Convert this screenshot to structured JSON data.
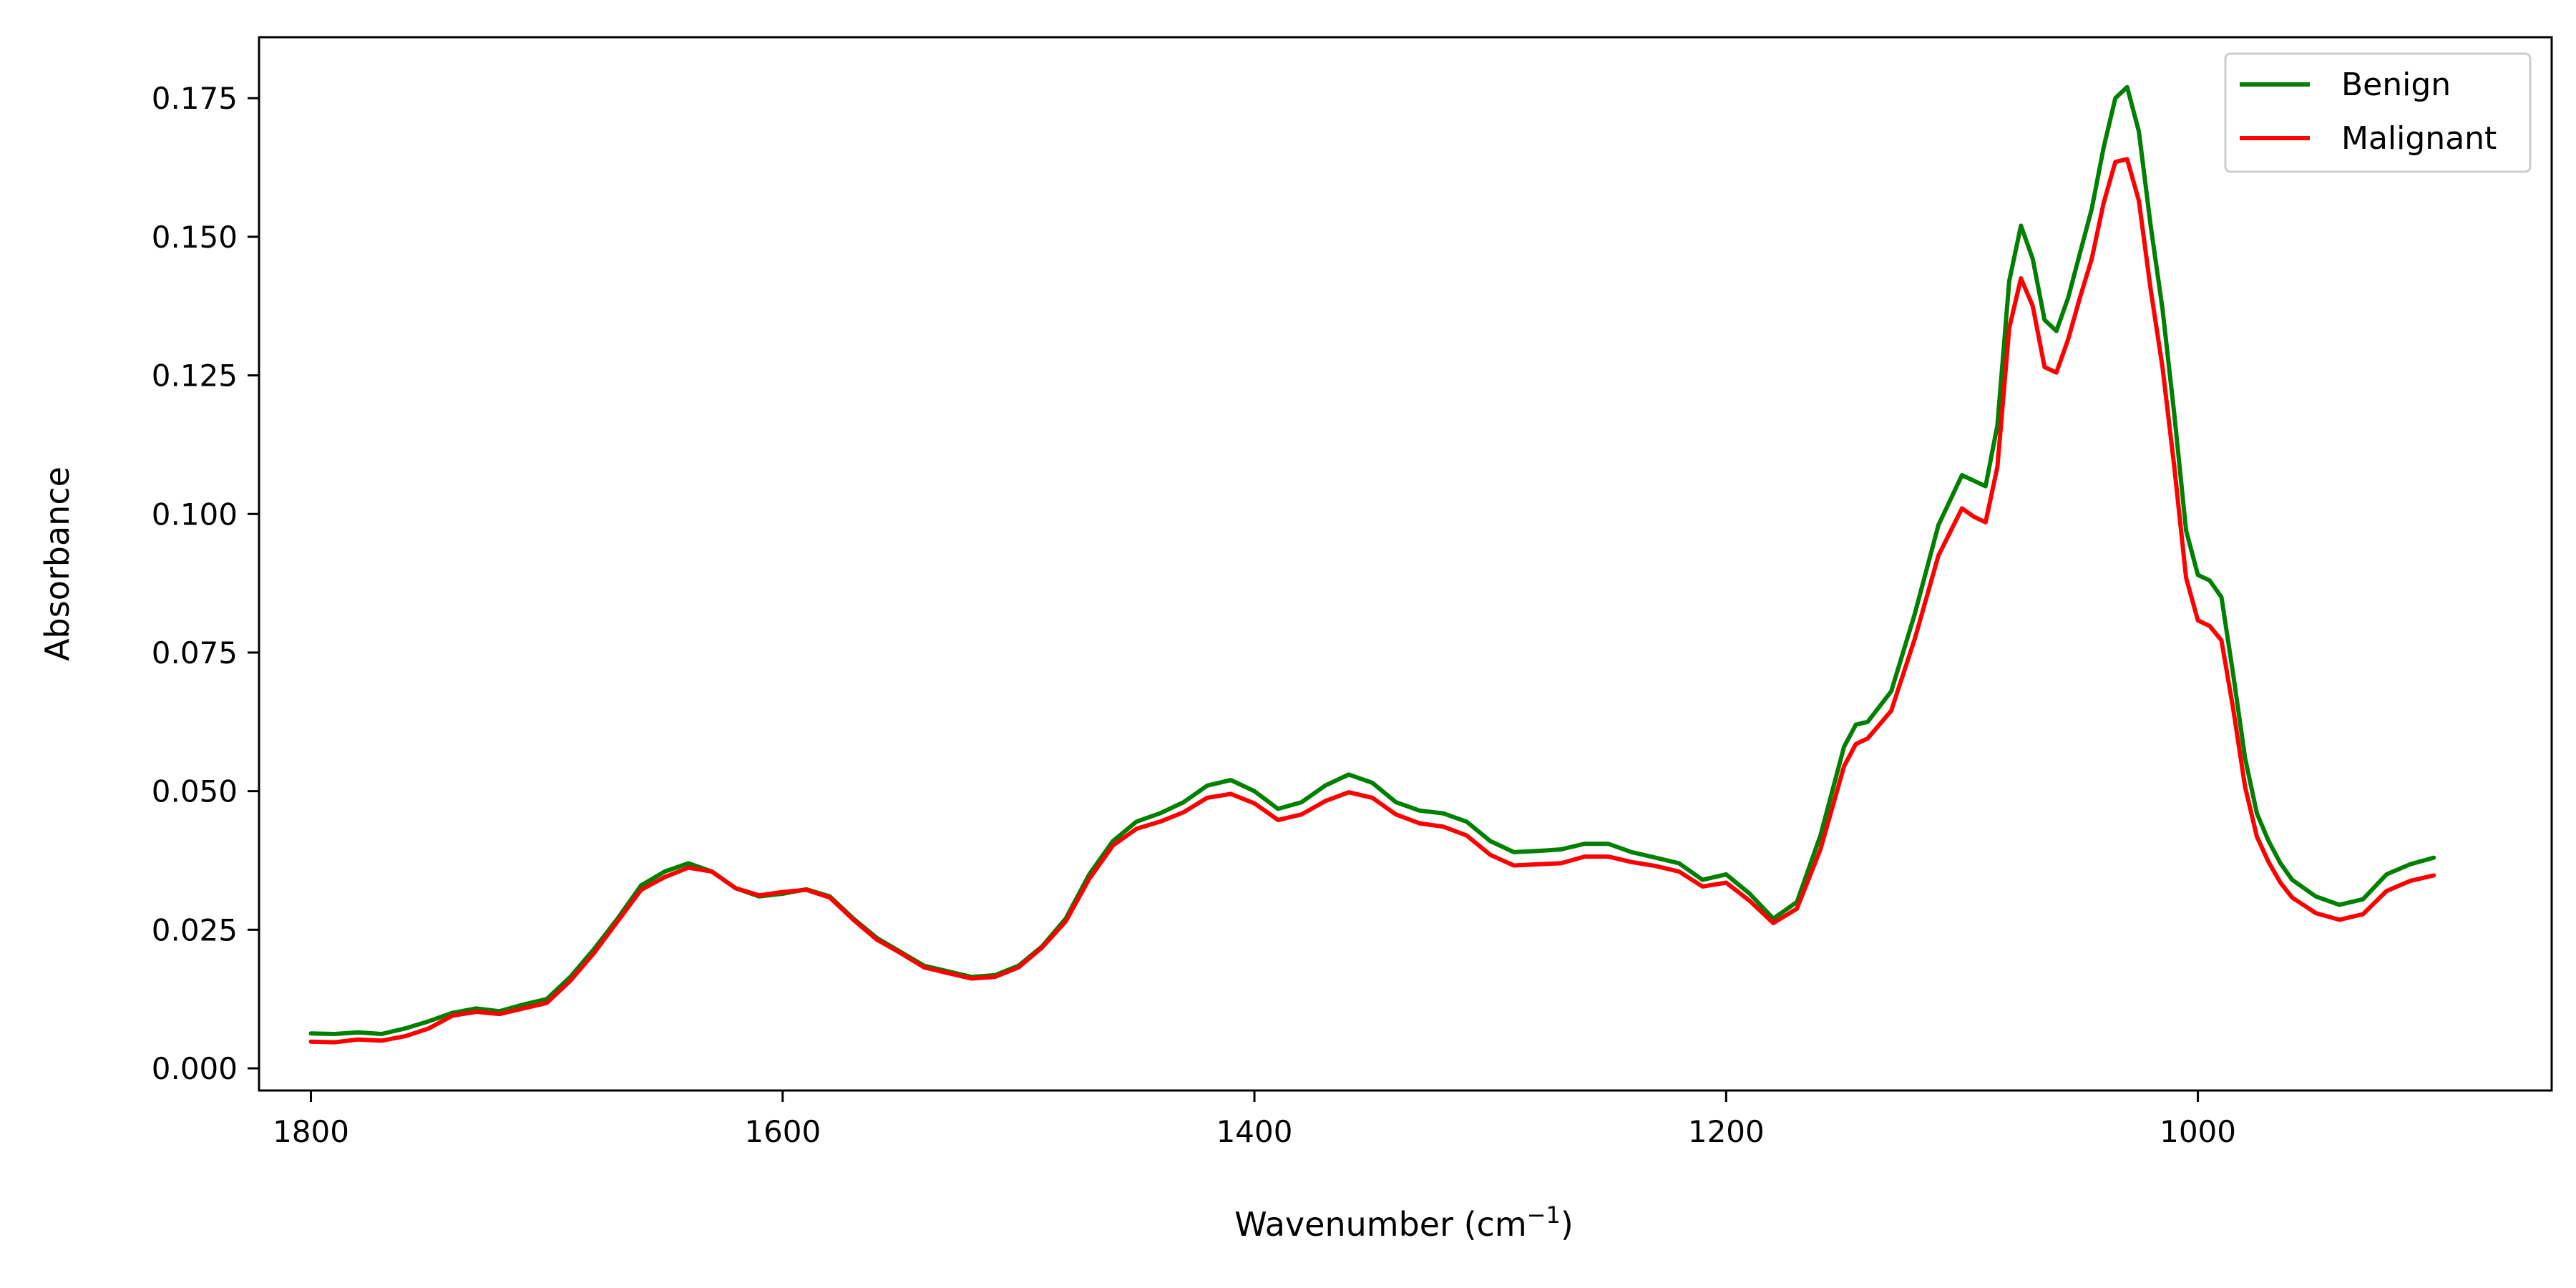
{
  "chart_data": {
    "type": "line",
    "title": "",
    "xlabel": "Wavenumber (cm",
    "xlabel_sup": "−1",
    "xlabel_close": ")",
    "ylabel": "Absorbance",
    "xlim": [
      1822,
      850
    ],
    "ylim": [
      -0.004,
      0.186
    ],
    "x_reversed": true,
    "x_ticks": [
      1800,
      1600,
      1400,
      1200,
      1000
    ],
    "x_tick_labels": [
      "1800",
      "1600",
      "1400",
      "1200",
      "1000"
    ],
    "y_ticks": [
      0.0,
      0.025,
      0.05,
      0.075,
      0.1,
      0.125,
      0.15,
      0.175
    ],
    "y_tick_labels": [
      "0.000",
      "0.025",
      "0.050",
      "0.075",
      "0.100",
      "0.125",
      "0.150",
      "0.175"
    ],
    "grid": false,
    "legend_position": "top-right",
    "series": [
      {
        "name": "Benign",
        "color": "#008000",
        "points": [
          [
            1800,
            0.0063
          ],
          [
            1790,
            0.0062
          ],
          [
            1780,
            0.0065
          ],
          [
            1770,
            0.0062
          ],
          [
            1760,
            0.0072
          ],
          [
            1750,
            0.0085
          ],
          [
            1740,
            0.01
          ],
          [
            1730,
            0.0108
          ],
          [
            1720,
            0.0103
          ],
          [
            1710,
            0.0115
          ],
          [
            1700,
            0.0125
          ],
          [
            1690,
            0.0165
          ],
          [
            1680,
            0.0215
          ],
          [
            1670,
            0.027
          ],
          [
            1660,
            0.033
          ],
          [
            1650,
            0.0355
          ],
          [
            1640,
            0.037
          ],
          [
            1630,
            0.0355
          ],
          [
            1620,
            0.0325
          ],
          [
            1610,
            0.031
          ],
          [
            1600,
            0.0315
          ],
          [
            1590,
            0.0323
          ],
          [
            1580,
            0.031
          ],
          [
            1570,
            0.027
          ],
          [
            1560,
            0.0235
          ],
          [
            1550,
            0.021
          ],
          [
            1540,
            0.0185
          ],
          [
            1530,
            0.0175
          ],
          [
            1520,
            0.0165
          ],
          [
            1510,
            0.0168
          ],
          [
            1500,
            0.0185
          ],
          [
            1490,
            0.022
          ],
          [
            1480,
            0.027
          ],
          [
            1470,
            0.035
          ],
          [
            1460,
            0.041
          ],
          [
            1450,
            0.0445
          ],
          [
            1440,
            0.046
          ],
          [
            1430,
            0.048
          ],
          [
            1420,
            0.051
          ],
          [
            1410,
            0.052
          ],
          [
            1400,
            0.05
          ],
          [
            1390,
            0.0468
          ],
          [
            1380,
            0.048
          ],
          [
            1370,
            0.051
          ],
          [
            1360,
            0.053
          ],
          [
            1350,
            0.0515
          ],
          [
            1340,
            0.048
          ],
          [
            1330,
            0.0465
          ],
          [
            1320,
            0.046
          ],
          [
            1310,
            0.0445
          ],
          [
            1300,
            0.041
          ],
          [
            1290,
            0.039
          ],
          [
            1280,
            0.0392
          ],
          [
            1270,
            0.0395
          ],
          [
            1260,
            0.0405
          ],
          [
            1250,
            0.0405
          ],
          [
            1240,
            0.039
          ],
          [
            1230,
            0.038
          ],
          [
            1220,
            0.037
          ],
          [
            1210,
            0.034
          ],
          [
            1200,
            0.035
          ],
          [
            1190,
            0.0315
          ],
          [
            1180,
            0.027
          ],
          [
            1170,
            0.03
          ],
          [
            1160,
            0.042
          ],
          [
            1150,
            0.058
          ],
          [
            1145,
            0.062
          ],
          [
            1140,
            0.0625
          ],
          [
            1130,
            0.068
          ],
          [
            1120,
            0.082
          ],
          [
            1110,
            0.098
          ],
          [
            1100,
            0.107
          ],
          [
            1095,
            0.106
          ],
          [
            1090,
            0.105
          ],
          [
            1085,
            0.116
          ],
          [
            1080,
            0.142
          ],
          [
            1075,
            0.152
          ],
          [
            1070,
            0.146
          ],
          [
            1065,
            0.135
          ],
          [
            1060,
            0.133
          ],
          [
            1055,
            0.139
          ],
          [
            1050,
            0.147
          ],
          [
            1045,
            0.155
          ],
          [
            1040,
            0.166
          ],
          [
            1035,
            0.175
          ],
          [
            1030,
            0.177
          ],
          [
            1025,
            0.169
          ],
          [
            1020,
            0.152
          ],
          [
            1015,
            0.137
          ],
          [
            1010,
            0.118
          ],
          [
            1005,
            0.097
          ],
          [
            1000,
            0.089
          ],
          [
            995,
            0.088
          ],
          [
            990,
            0.085
          ],
          [
            985,
            0.071
          ],
          [
            980,
            0.056
          ],
          [
            975,
            0.046
          ],
          [
            970,
            0.041
          ],
          [
            965,
            0.037
          ],
          [
            960,
            0.034
          ],
          [
            950,
            0.031
          ],
          [
            940,
            0.0295
          ],
          [
            930,
            0.0305
          ],
          [
            920,
            0.035
          ],
          [
            910,
            0.0368
          ],
          [
            900,
            0.038
          ]
        ]
      },
      {
        "name": "Malignant",
        "color": "#ff0000",
        "points": [
          [
            1800,
            0.0048
          ],
          [
            1790,
            0.0047
          ],
          [
            1780,
            0.0052
          ],
          [
            1770,
            0.005
          ],
          [
            1760,
            0.0058
          ],
          [
            1750,
            0.0072
          ],
          [
            1740,
            0.0095
          ],
          [
            1730,
            0.0102
          ],
          [
            1720,
            0.0098
          ],
          [
            1710,
            0.0108
          ],
          [
            1700,
            0.0118
          ],
          [
            1690,
            0.0158
          ],
          [
            1680,
            0.0208
          ],
          [
            1670,
            0.0265
          ],
          [
            1660,
            0.0322
          ],
          [
            1650,
            0.0345
          ],
          [
            1640,
            0.0362
          ],
          [
            1630,
            0.0355
          ],
          [
            1620,
            0.0325
          ],
          [
            1610,
            0.0312
          ],
          [
            1600,
            0.0318
          ],
          [
            1590,
            0.0322
          ],
          [
            1580,
            0.0308
          ],
          [
            1570,
            0.0268
          ],
          [
            1560,
            0.0232
          ],
          [
            1550,
            0.0208
          ],
          [
            1540,
            0.0182
          ],
          [
            1530,
            0.0172
          ],
          [
            1520,
            0.0162
          ],
          [
            1510,
            0.0165
          ],
          [
            1500,
            0.0182
          ],
          [
            1490,
            0.0218
          ],
          [
            1480,
            0.0265
          ],
          [
            1470,
            0.0342
          ],
          [
            1460,
            0.0402
          ],
          [
            1450,
            0.0432
          ],
          [
            1440,
            0.0445
          ],
          [
            1430,
            0.0462
          ],
          [
            1420,
            0.0488
          ],
          [
            1410,
            0.0495
          ],
          [
            1400,
            0.0478
          ],
          [
            1390,
            0.0448
          ],
          [
            1380,
            0.0458
          ],
          [
            1370,
            0.0482
          ],
          [
            1360,
            0.0498
          ],
          [
            1350,
            0.0488
          ],
          [
            1340,
            0.0458
          ],
          [
            1330,
            0.0442
          ],
          [
            1320,
            0.0436
          ],
          [
            1310,
            0.042
          ],
          [
            1300,
            0.0385
          ],
          [
            1290,
            0.0366
          ],
          [
            1280,
            0.0368
          ],
          [
            1270,
            0.037
          ],
          [
            1260,
            0.0382
          ],
          [
            1250,
            0.0382
          ],
          [
            1240,
            0.0372
          ],
          [
            1230,
            0.0365
          ],
          [
            1220,
            0.0355
          ],
          [
            1210,
            0.0328
          ],
          [
            1200,
            0.0335
          ],
          [
            1190,
            0.0302
          ],
          [
            1180,
            0.0262
          ],
          [
            1170,
            0.0288
          ],
          [
            1160,
            0.0395
          ],
          [
            1150,
            0.0545
          ],
          [
            1145,
            0.0585
          ],
          [
            1140,
            0.0595
          ],
          [
            1130,
            0.0645
          ],
          [
            1120,
            0.0775
          ],
          [
            1110,
            0.0925
          ],
          [
            1100,
            0.101
          ],
          [
            1095,
            0.0995
          ],
          [
            1090,
            0.0985
          ],
          [
            1085,
            0.1085
          ],
          [
            1080,
            0.1335
          ],
          [
            1075,
            0.1425
          ],
          [
            1070,
            0.1375
          ],
          [
            1065,
            0.1265
          ],
          [
            1060,
            0.1255
          ],
          [
            1055,
            0.1315
          ],
          [
            1050,
            0.139
          ],
          [
            1045,
            0.146
          ],
          [
            1040,
            0.156
          ],
          [
            1035,
            0.1635
          ],
          [
            1030,
            0.164
          ],
          [
            1025,
            0.1565
          ],
          [
            1020,
            0.1405
          ],
          [
            1015,
            0.1265
          ],
          [
            1010,
            0.1085
          ],
          [
            1005,
            0.0885
          ],
          [
            1000,
            0.0808
          ],
          [
            995,
            0.0798
          ],
          [
            990,
            0.0772
          ],
          [
            985,
            0.0648
          ],
          [
            980,
            0.0508
          ],
          [
            975,
            0.0418
          ],
          [
            970,
            0.0372
          ],
          [
            965,
            0.0335
          ],
          [
            960,
            0.0308
          ],
          [
            950,
            0.028
          ],
          [
            940,
            0.0268
          ],
          [
            930,
            0.0278
          ],
          [
            920,
            0.032
          ],
          [
            910,
            0.0338
          ],
          [
            900,
            0.0348
          ]
        ]
      }
    ]
  }
}
